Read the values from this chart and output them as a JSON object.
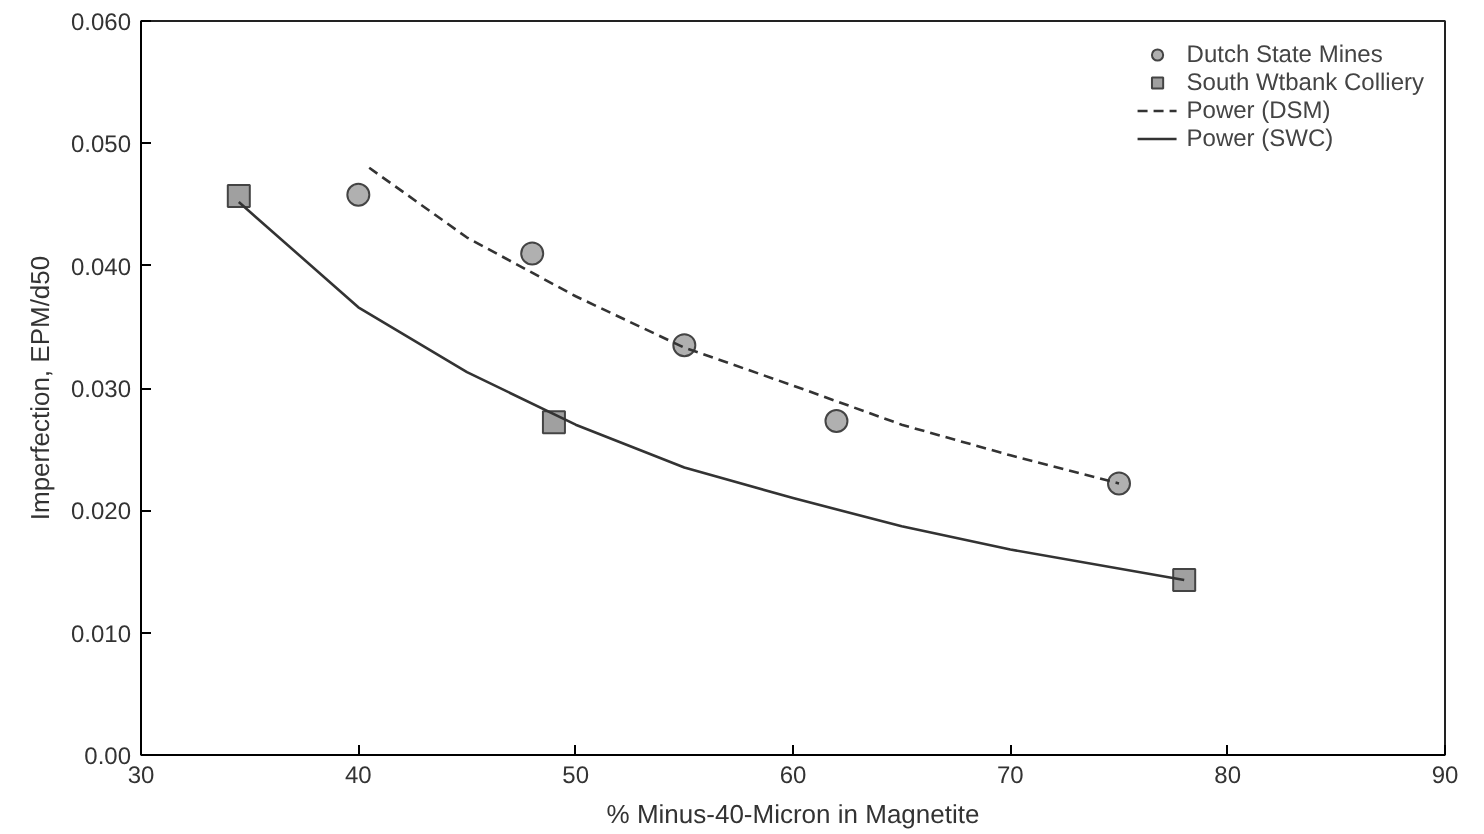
{
  "chart_data": {
    "type": "scatter",
    "xlabel": "% Minus-40-Micron in Magnetite",
    "ylabel": "Imperfection, EPM/d50",
    "xlim": [
      30,
      90
    ],
    "xticks": [
      30,
      40,
      50,
      60,
      70,
      80,
      90
    ],
    "ylim": [
      0,
      0.06
    ],
    "yticks": [
      {
        "value": 0,
        "label": "0.00"
      },
      {
        "value": 0.01,
        "label": "0.010"
      },
      {
        "value": 0.02,
        "label": "0.020"
      },
      {
        "value": 0.03,
        "label": "0.030"
      },
      {
        "value": 0.04,
        "label": "0.040"
      },
      {
        "value": 0.05,
        "label": "0.050"
      },
      {
        "value": 0.06,
        "label": "0.060"
      }
    ],
    "grid": false,
    "legend": "top right",
    "series": [
      {
        "name": "Dutch State Mines",
        "marker": "circle",
        "color": "#b0b0b0",
        "x": [
          40,
          48,
          55,
          62,
          75
        ],
        "values": [
          0.0458,
          0.041,
          0.0335,
          0.0273,
          0.0222
        ]
      },
      {
        "name": "South Wtbank Colliery",
        "marker": "square",
        "color": "#a0a0a0",
        "x": [
          34.5,
          49,
          78
        ],
        "values": [
          0.0457,
          0.0272,
          0.0143
        ]
      },
      {
        "name": "Power (DSM)",
        "type": "line",
        "line_style": "dashed",
        "color": "#333333",
        "x": [
          40.5,
          45,
          50,
          55,
          60,
          65,
          70,
          75
        ],
        "values": [
          0.048,
          0.0423,
          0.0375,
          0.0333,
          0.0302,
          0.027,
          0.0245,
          0.0222
        ]
      },
      {
        "name": "Power (SWC)",
        "type": "line",
        "line_style": "solid",
        "color": "#333333",
        "x": [
          34.5,
          40,
          45,
          50,
          55,
          60,
          65,
          70,
          78
        ],
        "values": [
          0.0452,
          0.0366,
          0.0313,
          0.027,
          0.0235,
          0.021,
          0.0187,
          0.0168,
          0.0143
        ]
      }
    ]
  }
}
